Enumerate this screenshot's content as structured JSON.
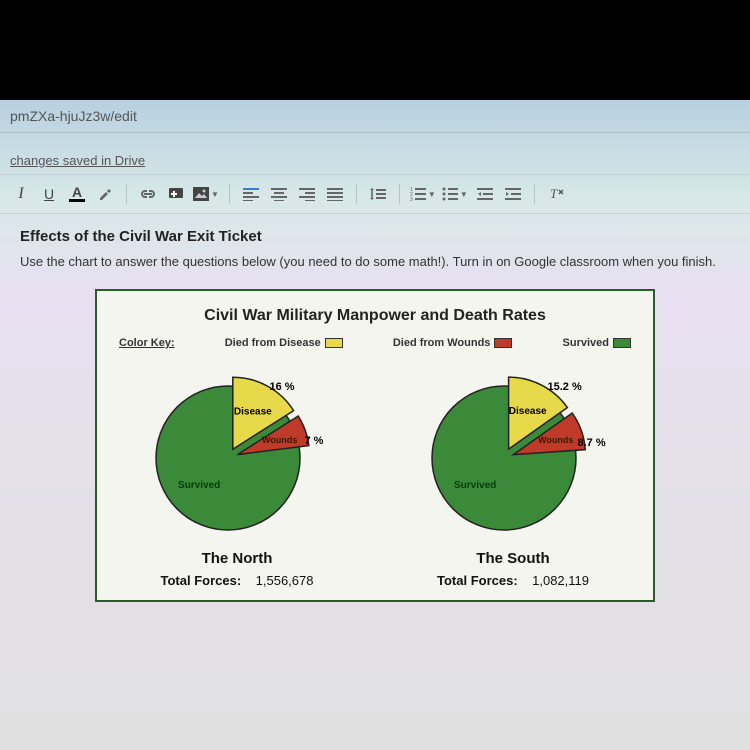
{
  "url_fragment": "pmZXa-hjuJz3w/edit",
  "status_text": "changes saved in Drive",
  "toolbar": {
    "italic": "I",
    "underline": "U",
    "text_color": "A"
  },
  "doc": {
    "title": "Effects of the Civil War Exit Ticket",
    "instructions": "Use the chart to answer the questions below (you need to do some math!). Turn in on Google classroom when you finish."
  },
  "chart": {
    "title": "Civil War Military Manpower and Death Rates",
    "key_label": "Color Key:",
    "legend": {
      "disease": {
        "label": "Died from Disease",
        "color": "#e6d94a"
      },
      "wounds": {
        "label": "Died from Wounds",
        "color": "#c03a2a"
      },
      "survived": {
        "label": "Survived",
        "color": "#3a8a3a"
      }
    },
    "stroke_color": "#222222",
    "north": {
      "label": "The North",
      "forces_label": "Total Forces:",
      "forces_value": "1,556,678",
      "disease_pct": 16,
      "wounds_pct": 7,
      "disease_text": "16 %",
      "wounds_text": "7 %",
      "slice_labels": {
        "disease": "Disease",
        "wounds": "Wounds",
        "survived": "Survived"
      }
    },
    "south": {
      "label": "The South",
      "forces_label": "Total Forces:",
      "forces_value": "1,082,119",
      "disease_pct": 15.2,
      "wounds_pct": 8.7,
      "disease_text": "15.2 %",
      "wounds_text": "8.7 %",
      "slice_labels": {
        "disease": "Disease",
        "wounds": "Wounds",
        "survived": "Survived"
      }
    }
  }
}
